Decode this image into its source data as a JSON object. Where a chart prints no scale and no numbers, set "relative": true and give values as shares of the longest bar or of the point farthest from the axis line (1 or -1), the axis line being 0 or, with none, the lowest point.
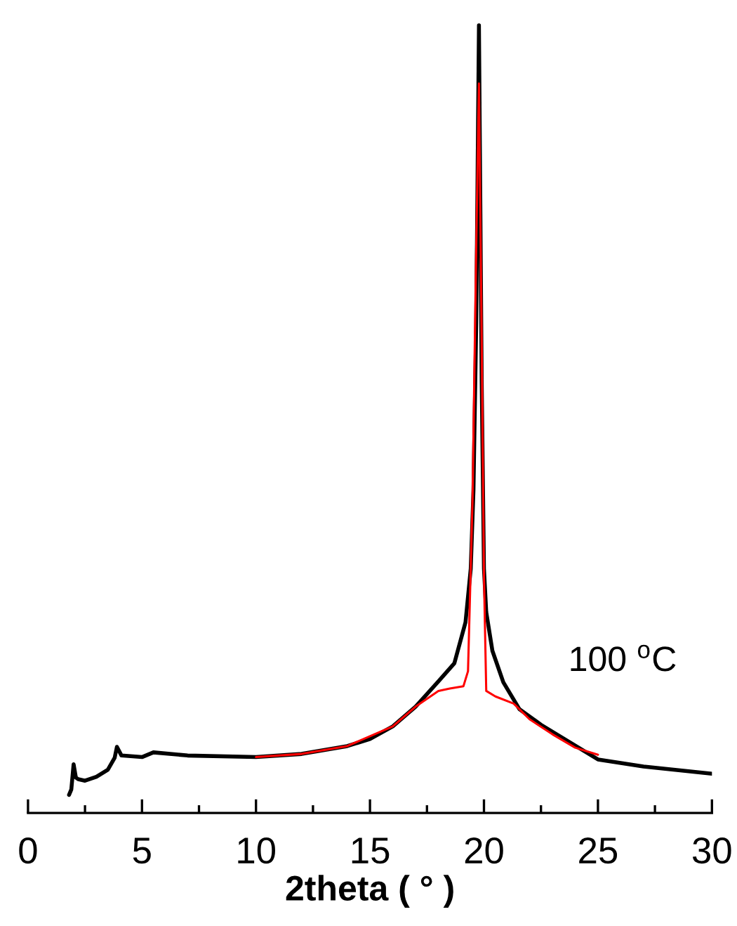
{
  "chart_data": {
    "type": "line",
    "relative": true,
    "xlabel": "2theta ( ° )",
    "tick_labels": "x",
    "grid": false,
    "xlim": [
      0,
      30
    ],
    "xticks": [
      0,
      {
        "value": 2.5,
        "label": null
      },
      5,
      {
        "value": 7.5,
        "label": null
      },
      10,
      {
        "value": 12.5,
        "label": null
      },
      15,
      {
        "value": 17.5,
        "label": null
      },
      20,
      {
        "value": 22.5,
        "label": null
      },
      25,
      {
        "value": 27.5,
        "label": null
      },
      30
    ],
    "annotations": [
      "100 $^{o}$C"
    ],
    "series": [
      {
        "color": "#000000",
        "x": [
          1.8,
          1.9,
          2.0,
          2.1,
          2.2,
          2.5,
          3.0,
          3.5,
          3.8,
          3.9,
          4.1,
          5,
          5.5,
          7,
          10,
          12,
          14,
          15,
          16,
          17,
          18,
          18.7,
          19.19,
          19.42,
          19.54,
          19.66,
          19.78,
          19.9,
          20.0,
          20.1,
          20.37,
          20.85,
          21.55,
          22.5,
          25,
          27,
          30
        ],
        "values": [
          0.023,
          0.03,
          0.062,
          0.045,
          0.043,
          0.041,
          0.046,
          0.055,
          0.07,
          0.084,
          0.073,
          0.071,
          0.077,
          0.073,
          0.071,
          0.075,
          0.085,
          0.094,
          0.11,
          0.135,
          0.167,
          0.19,
          0.242,
          0.31,
          0.41,
          0.62,
          1.0,
          0.55,
          0.31,
          0.255,
          0.206,
          0.166,
          0.132,
          0.112,
          0.068,
          0.059,
          0.05
        ]
      },
      {
        "color": "#ff0000",
        "x": [
          10,
          12,
          14,
          16,
          17,
          18,
          18.5,
          19.1,
          19.3,
          19.5,
          19.65,
          19.78,
          19.9,
          20.0,
          20.1,
          20.5,
          21.3,
          22.0,
          23,
          24,
          25
        ],
        "values": [
          0.071,
          0.075,
          0.085,
          0.11,
          0.135,
          0.155,
          0.158,
          0.161,
          0.18,
          0.4,
          0.7,
          0.926,
          0.6,
          0.3,
          0.155,
          0.148,
          0.139,
          0.119,
          0.1,
          0.083,
          0.074
        ]
      }
    ]
  }
}
